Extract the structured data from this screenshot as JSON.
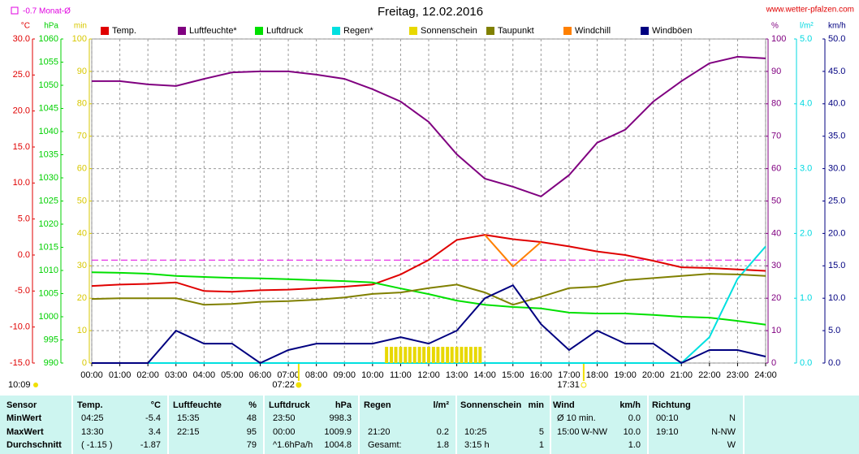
{
  "chart_data": {
    "type": "line",
    "title": "Freitag, 12.02.2016",
    "source": "www.wetter-pfalzen.com",
    "month_avg": {
      "value": -0.7,
      "label": "-0.7 Monat-Ø",
      "color": "#e000e0"
    },
    "day_length": "10:09",
    "sunrise": {
      "value": 7.37,
      "label": "07:22"
    },
    "sunset": {
      "value": 17.52,
      "label": "17:31"
    },
    "xlim": [
      0,
      24
    ],
    "xticks": [
      {
        "value": 0,
        "label": "00:00"
      },
      {
        "value": 1,
        "label": "01:00"
      },
      {
        "value": 2,
        "label": "02:00"
      },
      {
        "value": 3,
        "label": "03:00"
      },
      {
        "value": 4,
        "label": "04:00"
      },
      {
        "value": 5,
        "label": "05:00"
      },
      {
        "value": 6,
        "label": "06:00"
      },
      {
        "value": 7,
        "label": "07:00"
      },
      {
        "value": 8,
        "label": "08:00"
      },
      {
        "value": 9,
        "label": "09:00"
      },
      {
        "value": 10,
        "label": "10:00"
      },
      {
        "value": 11,
        "label": "11:00"
      },
      {
        "value": 12,
        "label": "12:00"
      },
      {
        "value": 13,
        "label": "13:00"
      },
      {
        "value": 14,
        "label": "14:00"
      },
      {
        "value": 15,
        "label": "15:00"
      },
      {
        "value": 16,
        "label": "16:00"
      },
      {
        "value": 17,
        "label": "17:00"
      },
      {
        "value": 18,
        "label": "18:00"
      },
      {
        "value": 19,
        "label": "19:00"
      },
      {
        "value": 20,
        "label": "20:00"
      },
      {
        "value": 21,
        "label": "21:00"
      },
      {
        "value": 22,
        "label": "22:00"
      },
      {
        "value": 23,
        "label": "23:00"
      },
      {
        "value": 24,
        "label": "24:00"
      }
    ],
    "x": [
      0,
      1,
      2,
      3,
      4,
      5,
      6,
      7,
      8,
      9,
      10,
      11,
      12,
      13,
      14,
      15,
      16,
      17,
      18,
      19,
      20,
      21,
      22,
      23,
      24
    ],
    "grid": true,
    "axes": [
      {
        "title": "°C",
        "side": "left",
        "color": "#e00000",
        "ylim": [
          -15,
          30
        ],
        "yticks": [
          {
            "value": -15,
            "label": "-15.0"
          },
          {
            "value": -10,
            "label": "-10.0"
          },
          {
            "value": -5,
            "label": "-5.0"
          },
          {
            "value": 0,
            "label": "0.0"
          },
          {
            "value": 5,
            "label": "5.0"
          },
          {
            "value": 10,
            "label": "10.0"
          },
          {
            "value": 15,
            "label": "15.0"
          },
          {
            "value": 20,
            "label": "20.0"
          },
          {
            "value": 25,
            "label": "25.0"
          },
          {
            "value": 30,
            "label": "30.0"
          }
        ]
      },
      {
        "title": "hPa",
        "side": "left",
        "color": "#00d000",
        "ylim": [
          990,
          1060
        ],
        "yticks": [
          990,
          995,
          1000,
          1005,
          1010,
          1015,
          1020,
          1025,
          1030,
          1035,
          1040,
          1045,
          1050,
          1055,
          1060
        ]
      },
      {
        "title": "min",
        "side": "left",
        "color": "#d8c800",
        "ylim": [
          0,
          100
        ],
        "yticks": [
          0,
          10,
          20,
          30,
          40,
          50,
          60,
          70,
          80,
          90,
          100
        ],
        "grid": true
      },
      {
        "title": "%",
        "side": "right",
        "color": "#800080",
        "ylim": [
          0,
          100
        ],
        "yticks": [
          0,
          10,
          20,
          30,
          40,
          50,
          60,
          70,
          80,
          90,
          100
        ]
      },
      {
        "title": "l/m²",
        "side": "right",
        "color": "#00d8e0",
        "ylim": [
          0,
          5
        ],
        "yticks": [
          {
            "value": 0,
            "label": "0.0"
          },
          {
            "value": 1,
            "label": "1.0"
          },
          {
            "value": 2,
            "label": "2.0"
          },
          {
            "value": 3,
            "label": "3.0"
          },
          {
            "value": 4,
            "label": "4.0"
          },
          {
            "value": 5,
            "label": "5.0"
          }
        ]
      },
      {
        "title": "km/h",
        "side": "right",
        "color": "#000080",
        "ylim": [
          0,
          50
        ],
        "yticks": [
          {
            "value": 0,
            "label": "0.0"
          },
          {
            "value": 5,
            "label": "5.0"
          },
          {
            "value": 10,
            "label": "10.0"
          },
          {
            "value": 15,
            "label": "15.0"
          },
          {
            "value": 20,
            "label": "20.0"
          },
          {
            "value": 25,
            "label": "25.0"
          },
          {
            "value": 30,
            "label": "30.0"
          },
          {
            "value": 35,
            "label": "35.0"
          },
          {
            "value": 40,
            "label": "40.0"
          },
          {
            "value": 45,
            "label": "45.0"
          },
          {
            "value": 50,
            "label": "50.0"
          }
        ]
      }
    ],
    "series": [
      {
        "name": "Temp.",
        "color": "#e00000",
        "axis": 0,
        "values": [
          -4.3,
          -4.1,
          -4.0,
          -3.8,
          -5.0,
          -5.1,
          -4.9,
          -4.8,
          -4.6,
          -4.4,
          -4.1,
          -2.7,
          -0.7,
          2.1,
          2.8,
          2.2,
          1.8,
          1.2,
          0.5,
          0.0,
          -0.8,
          -1.7,
          -1.8,
          -2.0,
          -2.2
        ]
      },
      {
        "name": "Luftfeuchte*",
        "color": "#800080",
        "axis": 3,
        "values": [
          87,
          87,
          86,
          85.5,
          87.7,
          89.7,
          90,
          90,
          89,
          87.7,
          84.5,
          80.7,
          74.4,
          64.4,
          56.9,
          54.4,
          51.4,
          58,
          68,
          72,
          80.7,
          87,
          92.5,
          94.5,
          94
        ]
      },
      {
        "name": "Luftdruck",
        "color": "#00e000",
        "axis": 1,
        "values": [
          1009.6,
          1009.5,
          1009.3,
          1008.8,
          1008.6,
          1008.4,
          1008.3,
          1008.1,
          1007.9,
          1007.7,
          1007.4,
          1006.1,
          1004.9,
          1003.5,
          1002.6,
          1002.1,
          1001.8,
          1000.9,
          1000.7,
          1000.7,
          1000.4,
          1000.0,
          999.8,
          999.1,
          998.3
        ]
      },
      {
        "name": "Regen*",
        "color": "#00e0e0",
        "axis": 4,
        "values": [
          0,
          0,
          0,
          0,
          0,
          0,
          0,
          0,
          0,
          0,
          0,
          0,
          0,
          0,
          0,
          0,
          0,
          0,
          0,
          0,
          0,
          0,
          0.4,
          1.3,
          1.8
        ]
      },
      {
        "name": "Sonnenschein",
        "color": "#e8d800",
        "axis": 2,
        "bars": true,
        "x": [
          10.5,
          10.67,
          10.83,
          11,
          11.17,
          11.33,
          11.5,
          11.67,
          11.83,
          12,
          12.17,
          12.33,
          12.5,
          12.67,
          12.83,
          13,
          13.17,
          13.33,
          13.5,
          13.67,
          13.83
        ],
        "values": [
          5,
          5,
          5,
          5,
          5,
          5,
          5,
          5,
          5,
          5,
          5,
          5,
          5,
          5,
          5,
          5,
          5,
          5,
          5,
          5,
          5
        ]
      },
      {
        "name": "Taupunkt",
        "color": "#808000",
        "axis": 0,
        "values": [
          -6.1,
          -6.0,
          -6.0,
          -6.0,
          -6.9,
          -6.8,
          -6.5,
          -6.4,
          -6.2,
          -5.9,
          -5.4,
          -5.2,
          -4.6,
          -4.1,
          -5.2,
          -6.9,
          -5.8,
          -4.6,
          -4.4,
          -3.5,
          -3.2,
          -2.9,
          -2.6,
          -2.7,
          -2.9
        ]
      },
      {
        "name": "Windchill",
        "color": "#ff8000",
        "axis": 0,
        "values": [
          null,
          null,
          null,
          null,
          null,
          null,
          null,
          null,
          null,
          null,
          null,
          null,
          null,
          null,
          2.8,
          -1.6,
          1.8,
          null,
          null,
          null,
          null,
          null,
          null,
          null,
          null
        ]
      },
      {
        "name": "Windböen",
        "color": "#000080",
        "axis": 5,
        "values": [
          0,
          0,
          0,
          5,
          3,
          3,
          0,
          2,
          3,
          3,
          3,
          4,
          3,
          5,
          10,
          12,
          6,
          2,
          5,
          3,
          3,
          0,
          2,
          2,
          1
        ]
      }
    ]
  },
  "table": {
    "rows": [
      [
        "Sensor",
        "Temp.",
        "°C",
        "Luftfeuchte",
        "%",
        "Luftdruck",
        "hPa",
        "Regen",
        "l/m²",
        "Sonnenschein",
        "min",
        "Wind",
        null,
        "km/h",
        "Richtung",
        null
      ],
      [
        "MinWert",
        "04:25",
        "-5.4",
        "15:35",
        "48",
        "23:50",
        "998.3",
        null,
        null,
        null,
        null,
        "Ø 10 min.",
        null,
        "0.0",
        "00:10",
        "N"
      ],
      [
        "MaxWert",
        "13:30",
        "3.4",
        "22:15",
        "95",
        "00:00",
        "1009.9",
        "21:20",
        "0.2",
        "10:25",
        "5",
        "15:00",
        "W-NW",
        "10.0",
        "19:10",
        "N-NW"
      ],
      [
        "Durchschnitt",
        "( -1.15 )",
        "-1.87",
        null,
        "79",
        "^1.6hPa/h",
        "1004.8",
        "Gesamt:",
        "1.8",
        "3:15 h",
        "1",
        null,
        null,
        "1.0",
        null,
        "W"
      ]
    ]
  }
}
